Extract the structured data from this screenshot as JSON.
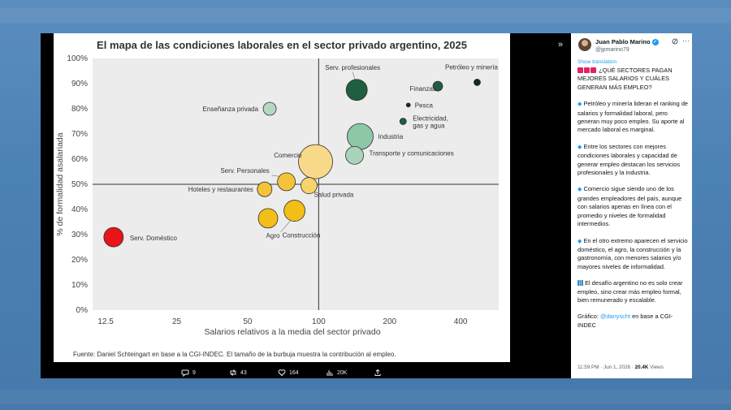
{
  "chart_data": {
    "type": "scatter",
    "title": "El mapa de las condiciones laborales en el sector privado argentino, 2025",
    "xlabel": "Salarios relativos a la media del sector privado",
    "ylabel": "% de formalidad asalariada",
    "x_scale": "log",
    "xlim": [
      11,
      580
    ],
    "ylim": [
      0,
      100
    ],
    "x_ticks": [
      12.5,
      25,
      50,
      100,
      200,
      400
    ],
    "x_tick_labels": [
      "12.5",
      "25",
      "50",
      "100",
      "200",
      "400"
    ],
    "y_ticks": [
      0,
      10,
      20,
      30,
      40,
      50,
      60,
      70,
      80,
      90,
      100
    ],
    "y_tick_labels": [
      "0%",
      "10%",
      "20%",
      "30%",
      "40%",
      "50%",
      "60%",
      "70%",
      "80%",
      "90%",
      "100%"
    ],
    "reference_lines": {
      "x": 100,
      "y": 50
    },
    "legend": "none",
    "grid": false,
    "points": [
      {
        "label": "Serv. Doméstico",
        "x": 13.5,
        "y": 29,
        "size": 12,
        "color": "#e8141a"
      },
      {
        "label": "Enseñanza privada",
        "x": 62,
        "y": 80,
        "size": 8,
        "color": "#b6d8c2"
      },
      {
        "label": "Serv. profesionales",
        "x": 145,
        "y": 87.5,
        "size": 13,
        "color": "#1f5e40"
      },
      {
        "label": "Finanzas",
        "x": 320,
        "y": 89,
        "size": 6,
        "color": "#1f5e40"
      },
      {
        "label": "Petróleo y minería",
        "x": 470,
        "y": 90.5,
        "size": 4,
        "color": "#162a1f"
      },
      {
        "label": "Pesca",
        "x": 240,
        "y": 81.5,
        "size": 2.5,
        "color": "#162a1f"
      },
      {
        "label": "Electricidad, gas y agua",
        "x": 228,
        "y": 75,
        "size": 4,
        "color": "#1f5e40"
      },
      {
        "label": "Industria",
        "x": 150,
        "y": 69,
        "size": 16,
        "color": "#8ec7a5"
      },
      {
        "label": "Transporte y comunicaciones",
        "x": 142,
        "y": 61.5,
        "size": 11,
        "color": "#a9d4b9"
      },
      {
        "label": "Comercio",
        "x": 97,
        "y": 59,
        "size": 21,
        "color": "#f8d98a"
      },
      {
        "label": "Serv. Personales",
        "x": 73,
        "y": 51,
        "size": 11,
        "color": "#f3c33a"
      },
      {
        "label": "Salud privada",
        "x": 91,
        "y": 49.5,
        "size": 10,
        "color": "#f6d46a"
      },
      {
        "label": "Hoteles y restaurantes",
        "x": 59,
        "y": 48,
        "size": 9,
        "color": "#f3c33a"
      },
      {
        "label": "Construcción",
        "x": 79,
        "y": 39.5,
        "size": 13,
        "color": "#f3be18"
      },
      {
        "label": "Agro",
        "x": 61,
        "y": 36.5,
        "size": 12,
        "color": "#f3be18"
      }
    ],
    "source_note": "Fuente: Daniel Schteingart en base a la CGI-INDEC. El tamaño de la burbuja muestra la contribución al empleo."
  },
  "actions": {
    "reply_count": "9",
    "retweet_count": "43",
    "like_count": "164",
    "views_count": "20K"
  },
  "tweet": {
    "author_name": "Juan Pablo Marino",
    "author_handle": "@jpmarino79",
    "show_translation": "Show translation",
    "headline": "¿QUÉ SECTORES PAGAN MEJORES SALARIOS Y CUÁLES GENERAN MÁS EMPLEO?",
    "bullet_1": "Petróleo y minería lideran el ranking de salarios y formalidad laboral, pero generan muy poco empleo. Su aporte al mercado laboral es marginal.",
    "bullet_2": "Entre los sectores con mejores condiciones laborales y capacidad de generar empleo destacan los servicios profesionales y la industria.",
    "bullet_3": "Comercio sigue siendo uno de los grandes empleadores del país, aunque con salarios apenas en línea con el promedio y niveles de formalidad intermedios.",
    "bullet_4": "En el otro extremo aparecen el servicio doméstico, el agro, la construcción y la gastronomía, con menores salarios y/o mayores niveles de informalidad.",
    "closing": "El desafío argentino no es solo crear empleo, sino crear más empleo formal, bien remunerado y escalable.",
    "graphic_prefix": "Gráfico: ",
    "graphic_mention": "@danyscht",
    "graphic_suffix": " en base a CGI-INDEC",
    "timestamp": "11:59 PM · Jun 1, 2026 · ",
    "views": "20.4K",
    "views_label": " Views"
  },
  "icons": [
    "chevron-double-right-icon",
    "reply-icon",
    "retweet-icon",
    "like-icon",
    "views-icon",
    "share-icon",
    "grok-icon",
    "more-icon",
    "verified-icon"
  ]
}
